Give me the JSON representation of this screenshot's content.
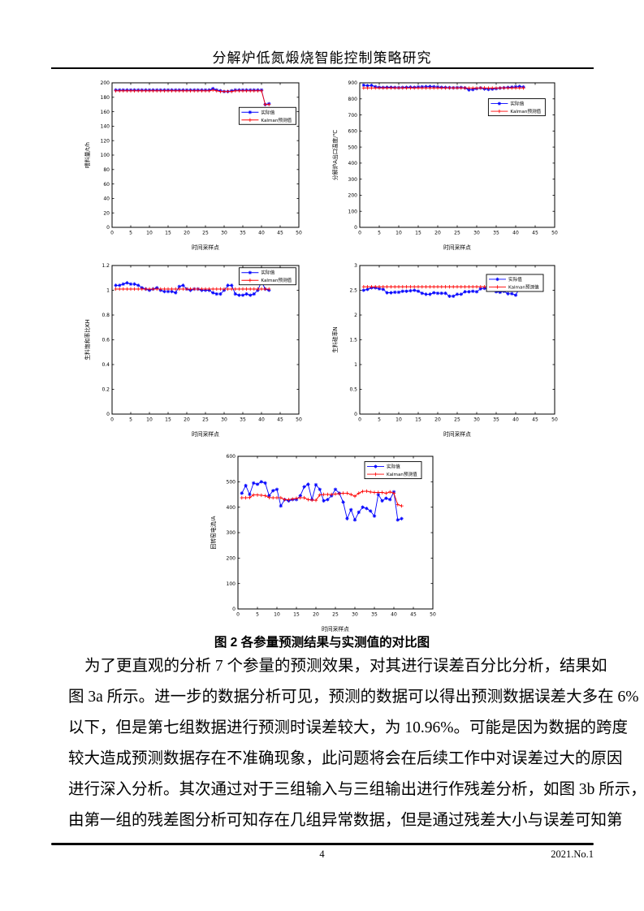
{
  "header": {
    "title": "分解炉低氮煅烧智能控制策略研究"
  },
  "figure": {
    "caption": "图 2 各参量预测结果与实测值的对比图"
  },
  "paragraph": {
    "lines": [
      "为了更直观的分析 7 个参量的预测效果，对其进行误差百分比分析，结果如",
      "图 3a 所示。进一步的数据分析可见，预测的数据可以得出预测数据误差大多在 6%",
      "以下，但是第七组数据进行预测时误差较大，为 10.96%。可能是因为数据的跨度",
      "较大造成预测数据存在不准确现象，此问题将会在后续工作中对误差过大的原因",
      "进行深入分析。其次通过对于三组输入与三组输出进行作残差分析，如图 3b 所示，",
      "由第一组的残差图分析可知存在几组异常数据，但是通过残差大小与误差可知第"
    ]
  },
  "footer": {
    "page_number": "4",
    "issue": "2021.No.1"
  },
  "colors": {
    "actual": "#0000ff",
    "predicted": "#ff0000"
  },
  "chart_data": [
    {
      "name": "feed-rate",
      "type": "line",
      "xlabel": "时间采样点",
      "ylabel": "喂料量/t/h",
      "xlim": [
        0,
        50
      ],
      "xtick_step": 5,
      "ylim": [
        0,
        200
      ],
      "ytick_step": 20,
      "x_start": 1,
      "legend_pos": {
        "x": 0.68,
        "y": 0.17
      },
      "series": [
        {
          "name": "实际值",
          "color": "#0000ff",
          "marker": "star",
          "values": [
            190,
            190,
            190,
            190,
            190,
            190,
            190,
            190,
            190,
            190,
            190,
            190,
            190,
            190,
            190,
            190,
            190,
            190,
            190,
            190,
            190,
            190,
            190,
            190,
            190,
            190,
            192,
            190,
            189,
            188,
            188,
            189,
            190,
            190,
            190,
            190,
            190,
            190,
            190,
            190,
            170,
            171
          ]
        },
        {
          "name": "Kalman预测值",
          "color": "#ff0000",
          "marker": "plus",
          "values": [
            189,
            189,
            189,
            189,
            189,
            189,
            189,
            189,
            189,
            189,
            189,
            189,
            189,
            189,
            189,
            189,
            189,
            189,
            189,
            189,
            189,
            189,
            189,
            189,
            189,
            189,
            190,
            189,
            188,
            188,
            188,
            188,
            189,
            189,
            189,
            189,
            189,
            189,
            189,
            189,
            170,
            170
          ]
        }
      ]
    },
    {
      "name": "calciner-outlet-temperature",
      "type": "line",
      "xlabel": "时间采样点",
      "ylabel": "分解炉A出口温度/℃",
      "xlim": [
        0,
        50
      ],
      "xtick_step": 5,
      "ylim": [
        0,
        900
      ],
      "ytick_step": 100,
      "x_start": 1,
      "legend_pos": {
        "x": 0.66,
        "y": 0.11
      },
      "series": [
        {
          "name": "实际值",
          "color": "#0000ff",
          "marker": "star",
          "values": [
            885,
            882,
            884,
            876,
            872,
            871,
            872,
            872,
            871,
            870,
            871,
            872,
            873,
            872,
            874,
            875,
            876,
            877,
            876,
            874,
            872,
            871,
            870,
            869,
            870,
            871,
            868,
            856,
            858,
            864,
            868,
            862,
            859,
            861,
            864,
            867,
            869,
            871,
            873,
            875,
            878,
            874
          ]
        },
        {
          "name": "Kalman预测值",
          "color": "#ff0000",
          "marker": "plus",
          "values": [
            868,
            868,
            868,
            868,
            868,
            868,
            868,
            868,
            868,
            868,
            868,
            868,
            868,
            868,
            868,
            868,
            868,
            868,
            868,
            868,
            868,
            868,
            868,
            868,
            868,
            868,
            868,
            867,
            867,
            867,
            868,
            868,
            867,
            867,
            867,
            868,
            868,
            868,
            868,
            868,
            868,
            868
          ]
        }
      ]
    },
    {
      "name": "raw-meal-saturation-ratio-kh",
      "type": "line",
      "xlabel": "时间采样点",
      "ylabel": "生料饱和率比KH",
      "xlim": [
        0,
        50
      ],
      "xtick_step": 5,
      "ylim": [
        0,
        1.2
      ],
      "ytick_step": 0.2,
      "x_start": 1,
      "legend_pos": {
        "x": 0.68,
        "y": 0.015
      },
      "series": [
        {
          "name": "实际值",
          "color": "#0000ff",
          "marker": "star",
          "values": [
            1.04,
            1.04,
            1.05,
            1.06,
            1.05,
            1.05,
            1.04,
            1.02,
            1.01,
            1.0,
            1.01,
            1.02,
            1.0,
            0.99,
            0.99,
            0.99,
            0.98,
            1.03,
            1.04,
            1.01,
            1.0,
            1.01,
            1.01,
            1.0,
            1.0,
            1.0,
            0.98,
            0.97,
            0.97,
            1.0,
            1.04,
            1.04,
            0.97,
            0.96,
            0.96,
            0.97,
            0.96,
            0.97,
            1.0,
            1.07,
            1.01,
            1.0
          ]
        },
        {
          "name": "Kalman预测值",
          "color": "#ff0000",
          "marker": "plus",
          "values": [
            1.01,
            1.01,
            1.01,
            1.01,
            1.01,
            1.01,
            1.01,
            1.01,
            1.01,
            1.01,
            1.01,
            1.01,
            1.01,
            1.01,
            1.01,
            1.01,
            1.01,
            1.01,
            1.01,
            1.01,
            1.01,
            1.01,
            1.01,
            1.01,
            1.01,
            1.01,
            1.01,
            1.01,
            1.01,
            1.01,
            1.01,
            1.01,
            1.01,
            1.01,
            1.01,
            1.01,
            1.01,
            1.01,
            1.01,
            1.01,
            1.01,
            1.01
          ]
        }
      ]
    },
    {
      "name": "raw-meal-silica-ratio-n",
      "type": "line",
      "xlabel": "时间采样点",
      "ylabel": "生料硅率N",
      "xlim": [
        0,
        50
      ],
      "xtick_step": 5,
      "ylim": [
        0,
        3
      ],
      "ytick_step": 0.5,
      "x_start": 1,
      "legend_pos": {
        "x": 0.65,
        "y": 0.06
      },
      "series": [
        {
          "name": "实际值",
          "color": "#0000ff",
          "marker": "star",
          "values": [
            2.5,
            2.52,
            2.55,
            2.55,
            2.53,
            2.52,
            2.45,
            2.45,
            2.46,
            2.46,
            2.48,
            2.48,
            2.49,
            2.5,
            2.48,
            2.44,
            2.42,
            2.42,
            2.45,
            2.44,
            2.44,
            2.44,
            2.38,
            2.38,
            2.42,
            2.42,
            2.47,
            2.47,
            2.48,
            2.47,
            2.53,
            2.54,
            2.52,
            2.55,
            2.47,
            2.46,
            2.48,
            2.43,
            2.43,
            2.4,
            2.55,
            2.55
          ]
        },
        {
          "name": "Kalman预测值",
          "color": "#ff0000",
          "marker": "plus",
          "values": [
            2.57,
            2.57,
            2.57,
            2.57,
            2.57,
            2.57,
            2.57,
            2.57,
            2.57,
            2.57,
            2.57,
            2.57,
            2.57,
            2.57,
            2.57,
            2.57,
            2.57,
            2.57,
            2.57,
            2.57,
            2.57,
            2.57,
            2.57,
            2.57,
            2.57,
            2.57,
            2.57,
            2.57,
            2.57,
            2.57,
            2.57,
            2.57,
            2.57,
            2.57,
            2.57,
            2.57,
            2.57,
            2.57,
            2.58,
            2.58,
            2.58,
            2.58
          ]
        }
      ]
    },
    {
      "name": "rotary-kiln-current",
      "type": "line",
      "xlabel": "时间采样点",
      "ylabel": "回转窑电流/A",
      "xlim": [
        0,
        50
      ],
      "xtick_step": 5,
      "ylim": [
        0,
        600
      ],
      "ytick_step": 100,
      "x_start": 1,
      "legend_pos": {
        "x": 0.65,
        "y": 0.035
      },
      "series": [
        {
          "name": "实际值",
          "color": "#0000ff",
          "marker": "star",
          "values": [
            455,
            485,
            450,
            495,
            490,
            500,
            495,
            445,
            465,
            470,
            405,
            430,
            425,
            430,
            430,
            445,
            480,
            490,
            430,
            488,
            470,
            425,
            430,
            445,
            470,
            455,
            420,
            355,
            390,
            350,
            380,
            400,
            395,
            385,
            365,
            450,
            425,
            435,
            430,
            460,
            350,
            355
          ]
        },
        {
          "name": "Kalman预测值",
          "color": "#ff0000",
          "marker": "plus",
          "values": [
            437,
            437,
            438,
            448,
            448,
            447,
            445,
            438,
            437,
            437,
            437,
            430,
            430,
            432,
            435,
            437,
            437,
            430,
            428,
            427,
            448,
            450,
            450,
            450,
            452,
            453,
            455,
            455,
            450,
            443,
            455,
            462,
            463,
            460,
            458,
            458,
            458,
            455,
            460,
            455,
            410,
            405
          ]
        }
      ]
    }
  ]
}
